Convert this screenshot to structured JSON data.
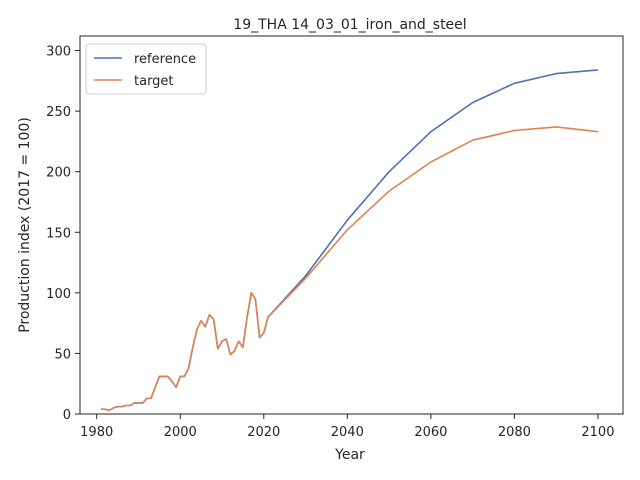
{
  "chart_data": {
    "type": "line",
    "title": "19_THA 14_03_01_iron_and_steel",
    "xlabel": "Year",
    "ylabel": "Production index (2017 = 100)",
    "xlim": [
      1976,
      2106
    ],
    "ylim": [
      0,
      312
    ],
    "xticks": [
      1980,
      2000,
      2020,
      2040,
      2060,
      2080,
      2100
    ],
    "yticks": [
      0,
      50,
      100,
      150,
      200,
      250,
      300
    ],
    "grid": false,
    "legend_position": "top-left",
    "series": [
      {
        "name": "reference",
        "color": "#4c72b0",
        "x": [
          1981,
          1982,
          1983,
          1984,
          1985,
          1986,
          1987,
          1988,
          1989,
          1990,
          1991,
          1992,
          1993,
          1994,
          1995,
          1996,
          1997,
          1998,
          1999,
          2000,
          2001,
          2002,
          2003,
          2004,
          2005,
          2006,
          2007,
          2008,
          2009,
          2010,
          2011,
          2012,
          2013,
          2014,
          2015,
          2016,
          2017,
          2018,
          2019,
          2020,
          2021,
          2030,
          2040,
          2050,
          2060,
          2070,
          2080,
          2090,
          2100
        ],
        "y": [
          4,
          4,
          3,
          5,
          6,
          6,
          7,
          7,
          9,
          9,
          9,
          13,
          13,
          22,
          31,
          31,
          31,
          27,
          22,
          31,
          31,
          38,
          55,
          70,
          77,
          72,
          82,
          78,
          54,
          60,
          62,
          49,
          52,
          60,
          55,
          80,
          100,
          95,
          63,
          67,
          80,
          114,
          160,
          200,
          233,
          257,
          273,
          281,
          284
        ]
      },
      {
        "name": "target",
        "color": "#dd8452",
        "x": [
          1981,
          1982,
          1983,
          1984,
          1985,
          1986,
          1987,
          1988,
          1989,
          1990,
          1991,
          1992,
          1993,
          1994,
          1995,
          1996,
          1997,
          1998,
          1999,
          2000,
          2001,
          2002,
          2003,
          2004,
          2005,
          2006,
          2007,
          2008,
          2009,
          2010,
          2011,
          2012,
          2013,
          2014,
          2015,
          2016,
          2017,
          2018,
          2019,
          2020,
          2021,
          2030,
          2040,
          2050,
          2060,
          2070,
          2080,
          2090,
          2100
        ],
        "y": [
          4,
          4,
          3,
          5,
          6,
          6,
          7,
          7,
          9,
          9,
          9,
          13,
          13,
          22,
          31,
          31,
          31,
          27,
          22,
          31,
          31,
          38,
          55,
          70,
          77,
          72,
          82,
          78,
          54,
          60,
          62,
          49,
          52,
          60,
          55,
          80,
          100,
          95,
          63,
          67,
          80,
          112,
          152,
          184,
          208,
          226,
          234,
          237,
          233
        ]
      }
    ]
  }
}
